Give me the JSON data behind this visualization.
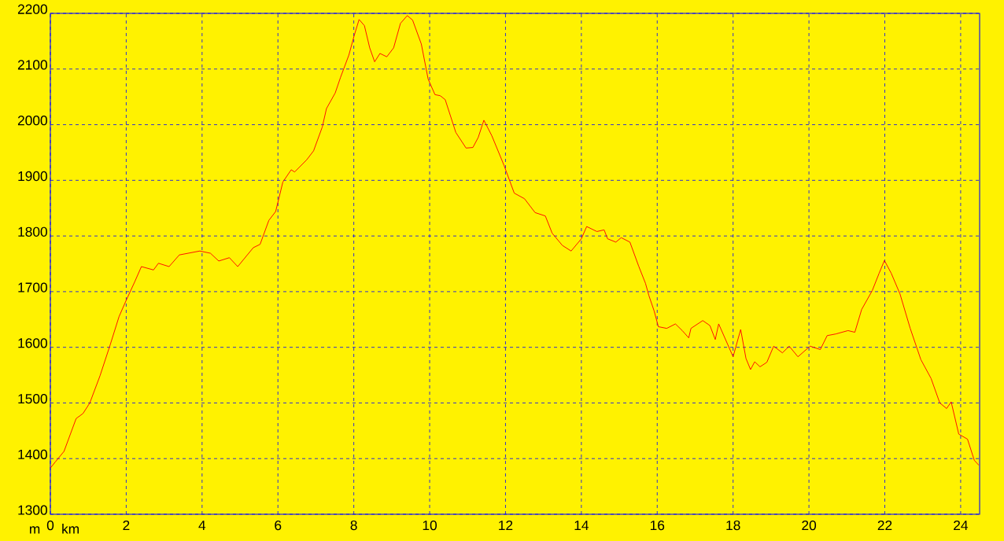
{
  "chart_data": {
    "type": "line",
    "xlabel": "km",
    "ylabel": "m",
    "color": "#ff0000",
    "grid": true,
    "xlim": [
      0,
      24.5
    ],
    "ylim": [
      1300,
      2200
    ],
    "xticks": [
      0,
      2,
      4,
      6,
      8,
      10,
      12,
      14,
      16,
      18,
      20,
      22,
      24
    ],
    "yticks": [
      1300,
      1400,
      1500,
      1600,
      1700,
      1800,
      1900,
      2000,
      2100,
      2200
    ],
    "x": [
      0,
      0.13,
      0.36,
      0.68,
      0.86,
      1.04,
      1.31,
      1.58,
      1.81,
      1.99,
      2.22,
      2.4,
      2.72,
      2.85,
      3.13,
      3.4,
      3.94,
      4.22,
      4.44,
      4.72,
      4.94,
      5.35,
      5.53,
      5.76,
      5.94,
      6.13,
      6.35,
      6.44,
      6.76,
      6.94,
      7.17,
      7.28,
      7.51,
      7.65,
      7.87,
      8.01,
      8.14,
      8.28,
      8.42,
      8.55,
      8.69,
      8.87,
      9.05,
      9.23,
      9.41,
      9.55,
      9.78,
      9.96,
      10.14,
      10.28,
      10.41,
      10.69,
      10.96,
      11.14,
      11.28,
      11.43,
      11.64,
      11.96,
      12.23,
      12.5,
      12.78,
      13.05,
      13.23,
      13.5,
      13.73,
      14.0,
      14.14,
      14.41,
      14.6,
      14.69,
      14.91,
      15.05,
      15.28,
      15.51,
      15.69,
      15.78,
      15.92,
      16.03,
      16.25,
      16.48,
      16.66,
      16.83,
      16.89,
      17.2,
      17.39,
      17.53,
      17.62,
      17.84,
      18.0,
      18.2,
      18.34,
      18.46,
      18.57,
      18.71,
      18.89,
      19.07,
      19.3,
      19.48,
      19.71,
      20.03,
      20.3,
      20.48,
      20.71,
      21.03,
      21.21,
      21.39,
      21.67,
      21.85,
      21.99,
      22.17,
      22.4,
      22.67,
      22.95,
      23.22,
      23.45,
      23.63,
      23.75,
      23.95,
      24.18,
      24.36,
      24.48
    ],
    "values": [
      1383,
      1394,
      1413,
      1472,
      1481,
      1500,
      1549,
      1605,
      1655,
      1683,
      1717,
      1745,
      1739,
      1751,
      1745,
      1766,
      1773,
      1769,
      1755,
      1761,
      1745,
      1779,
      1785,
      1828,
      1844,
      1897,
      1919,
      1915,
      1937,
      1953,
      1996,
      2029,
      2057,
      2085,
      2125,
      2160,
      2189,
      2178,
      2138,
      2113,
      2128,
      2122,
      2138,
      2182,
      2196,
      2188,
      2145,
      2082,
      2054,
      2052,
      2045,
      1986,
      1958,
      1959,
      1977,
      2008,
      1980,
      1927,
      1877,
      1867,
      1842,
      1836,
      1805,
      1783,
      1773,
      1795,
      1817,
      1808,
      1811,
      1795,
      1789,
      1797,
      1789,
      1746,
      1715,
      1693,
      1665,
      1637,
      1634,
      1642,
      1630,
      1617,
      1634,
      1648,
      1639,
      1614,
      1642,
      1608,
      1583,
      1632,
      1580,
      1560,
      1574,
      1565,
      1573,
      1602,
      1590,
      1602,
      1583,
      1602,
      1596,
      1621,
      1624,
      1630,
      1627,
      1668,
      1702,
      1733,
      1756,
      1733,
      1696,
      1634,
      1578,
      1544,
      1500,
      1490,
      1502,
      1444,
      1435,
      1397,
      1388
    ]
  }
}
